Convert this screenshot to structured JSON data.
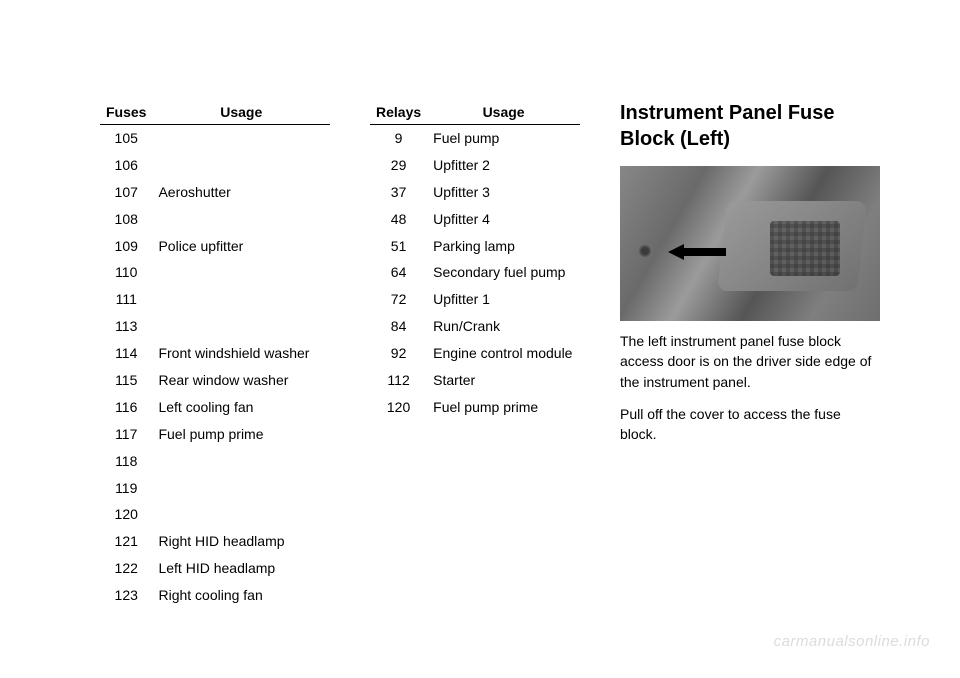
{
  "fuses_table": {
    "headers": [
      "Fuses",
      "Usage"
    ],
    "rows": [
      {
        "num": "105",
        "usage": ""
      },
      {
        "num": "106",
        "usage": ""
      },
      {
        "num": "107",
        "usage": "Aeroshutter"
      },
      {
        "num": "108",
        "usage": ""
      },
      {
        "num": "109",
        "usage": "Police upfitter"
      },
      {
        "num": "110",
        "usage": ""
      },
      {
        "num": "111",
        "usage": ""
      },
      {
        "num": "113",
        "usage": ""
      },
      {
        "num": "114",
        "usage": "Front windshield washer"
      },
      {
        "num": "115",
        "usage": "Rear window washer"
      },
      {
        "num": "116",
        "usage": "Left cooling fan"
      },
      {
        "num": "117",
        "usage": "Fuel pump prime"
      },
      {
        "num": "118",
        "usage": ""
      },
      {
        "num": "119",
        "usage": ""
      },
      {
        "num": "120",
        "usage": ""
      },
      {
        "num": "121",
        "usage": "Right HID headlamp"
      },
      {
        "num": "122",
        "usage": "Left HID headlamp"
      },
      {
        "num": "123",
        "usage": "Right cooling fan"
      }
    ]
  },
  "relays_table": {
    "headers": [
      "Relays",
      "Usage"
    ],
    "rows": [
      {
        "num": "9",
        "usage": "Fuel pump"
      },
      {
        "num": "29",
        "usage": "Upfitter 2"
      },
      {
        "num": "37",
        "usage": "Upfitter 3"
      },
      {
        "num": "48",
        "usage": "Upfitter 4"
      },
      {
        "num": "51",
        "usage": "Parking lamp"
      },
      {
        "num": "64",
        "usage": "Secondary fuel pump"
      },
      {
        "num": "72",
        "usage": "Upfitter 1"
      },
      {
        "num": "84",
        "usage": "Run/Crank"
      },
      {
        "num": "92",
        "usage": "Engine control module"
      },
      {
        "num": "112",
        "usage": "Starter"
      },
      {
        "num": "120",
        "usage": "Fuel pump prime"
      }
    ]
  },
  "section": {
    "title": "Instrument Panel Fuse Block (Left)",
    "para1": "The left instrument panel fuse block access door is on the driver side edge of the instrument panel.",
    "para2": "Pull off the cover to access the fuse block."
  },
  "watermark": "carmanualsonline.info"
}
